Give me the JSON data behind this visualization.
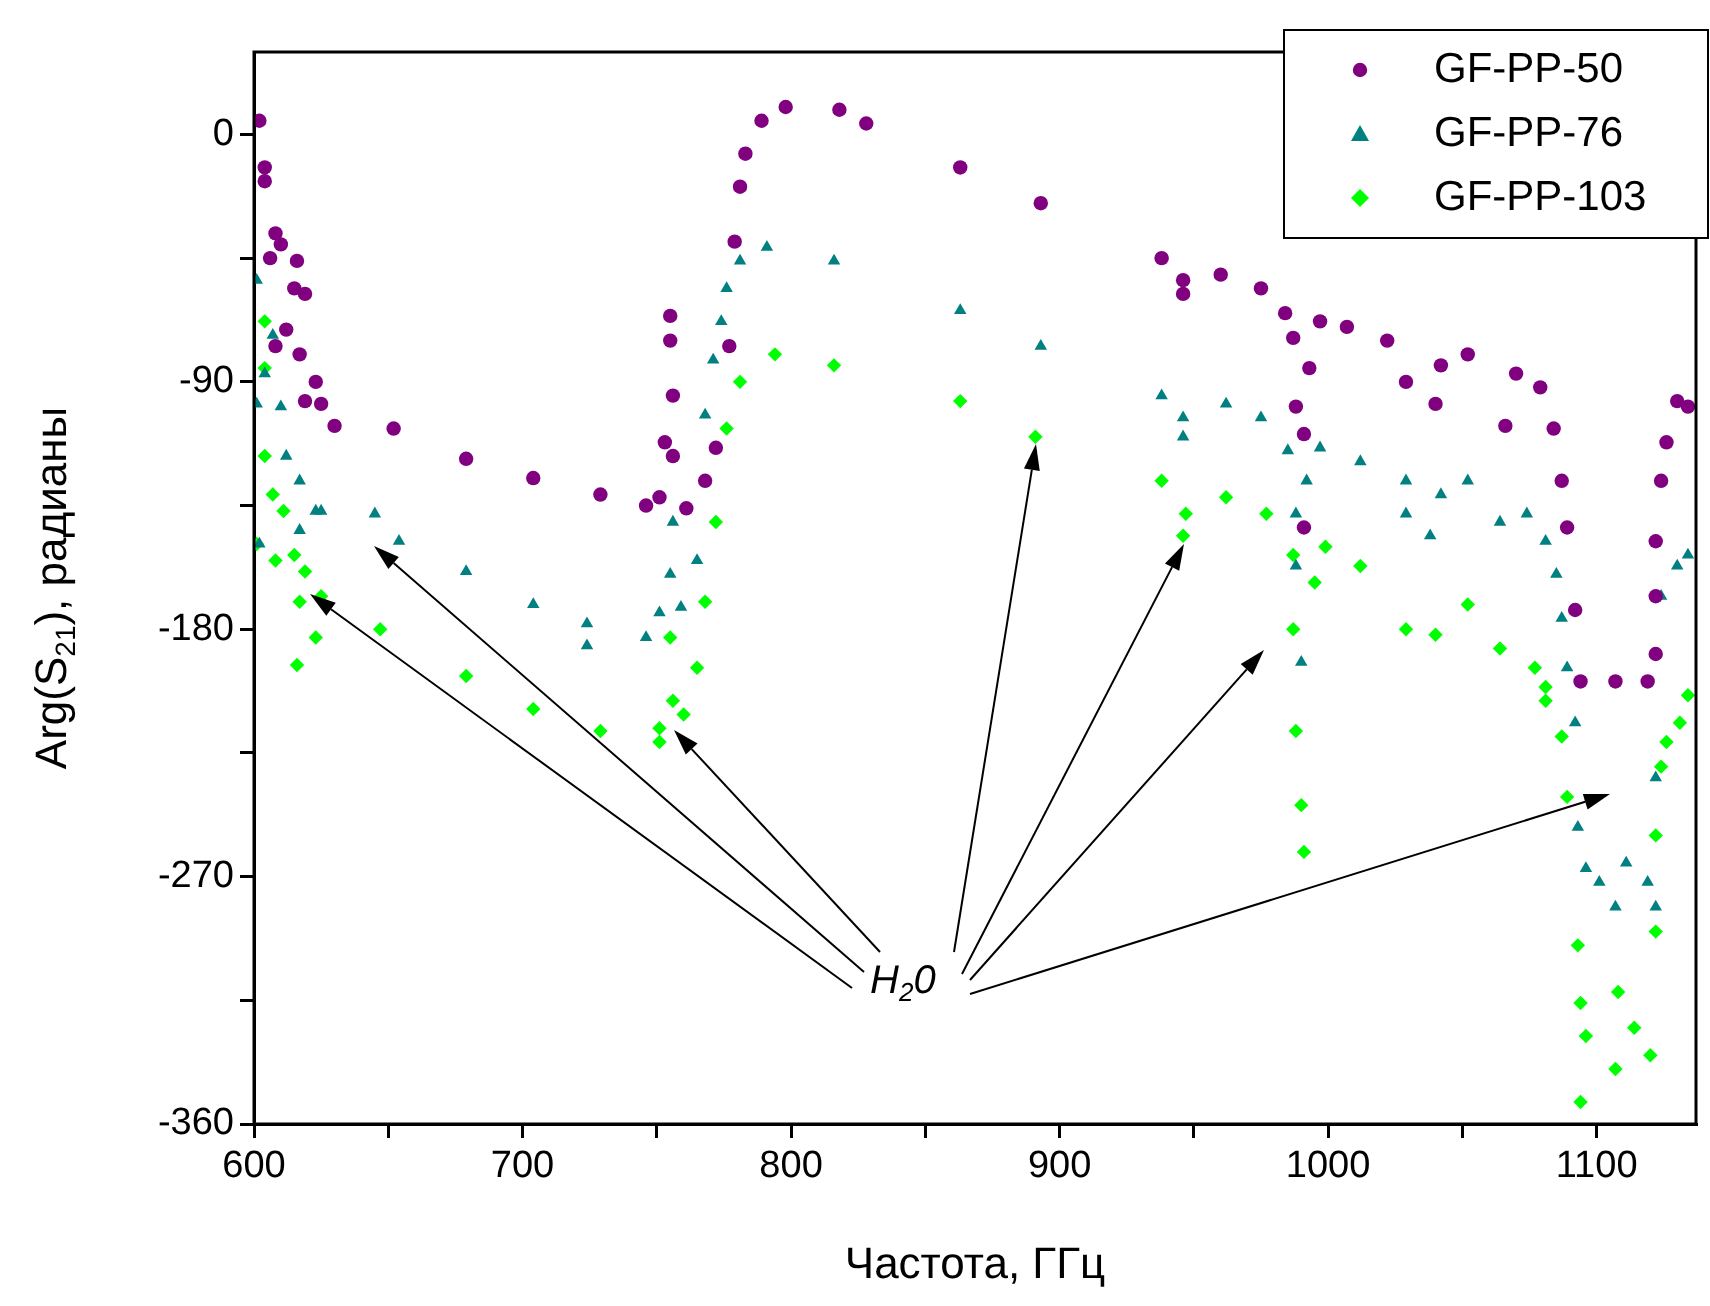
{
  "chart_data": {
    "type": "scatter",
    "xlabel": "Частота, ГГц",
    "ylabel": "Arg(S$_{21}$), радианы",
    "xlim": [
      600,
      1137
    ],
    "ylim": [
      -360,
      30
    ],
    "xticks": [
      600,
      {
        "value": 650,
        "label": null
      },
      700,
      {
        "value": 750,
        "label": null
      },
      800,
      {
        "value": 850,
        "label": null
      },
      900,
      {
        "value": 950,
        "label": null
      },
      1000,
      {
        "value": 1050,
        "label": null
      },
      1100
    ],
    "yticks": [
      -360,
      {
        "value": -315,
        "label": null
      },
      -270,
      {
        "value": -225,
        "label": null
      },
      -180,
      {
        "value": -135,
        "label": null
      },
      -90,
      {
        "value": -45,
        "label": null
      },
      0
    ],
    "grid": false,
    "legend": "top right",
    "annotations": [
      "H$_{2}$0"
    ],
    "series": [
      {
        "name": "GF-PP-50",
        "color": "#800080",
        "marker": "circle",
        "x": [
          602,
          604,
          604,
          606,
          608,
          610,
          616,
          615,
          619,
          608,
          612,
          617,
          623,
          619,
          625,
          630,
          652,
          679,
          704,
          729,
          746,
          751,
          755,
          755,
          756,
          753,
          756,
          761,
          768,
          772,
          777,
          779,
          781,
          783,
          789,
          798,
          818,
          828,
          863,
          893,
          938,
          946,
          946,
          960,
          975,
          984,
          987,
          988,
          991,
          991,
          993,
          997,
          1007,
          1022,
          1029,
          1040,
          1042,
          1052,
          1066,
          1070,
          1079,
          1084,
          1087,
          1089,
          1092,
          1094,
          1107,
          1119,
          1122,
          1122,
          1122,
          1124,
          1126,
          1130,
          1134
        ],
        "values": [
          5,
          -12,
          -17,
          -45,
          -36,
          -40,
          -46,
          -56,
          -58,
          -77,
          -71,
          -80,
          -90,
          -97,
          -98,
          -106,
          -107,
          -118,
          -125,
          -131,
          -135,
          -132,
          -66,
          -75,
          -95,
          -112,
          -117,
          -136,
          -126,
          -114,
          -77,
          -39,
          -19,
          -7,
          5,
          10,
          9,
          4,
          -12,
          -25,
          -45,
          -53,
          -58,
          -51,
          -56,
          -65,
          -74,
          -99,
          -109,
          -143,
          -85,
          -68,
          -70,
          -75,
          -90,
          -98,
          -84,
          -80,
          -106,
          -87,
          -92,
          -107,
          -126,
          -143,
          -173,
          -199,
          -199,
          -199,
          -189,
          -168,
          -148,
          -126,
          -112,
          -97,
          -99
        ]
      },
      {
        "name": "GF-PP-76",
        "color": "#008080",
        "marker": "triangle",
        "x": [
          601,
          604,
          601,
          607,
          610,
          612,
          602,
          617,
          617,
          623,
          625,
          645,
          654,
          679,
          704,
          724,
          724,
          746,
          751,
          756,
          755,
          759,
          765,
          768,
          771,
          774,
          776,
          781,
          791,
          816,
          863,
          893,
          938,
          946,
          946,
          962,
          975,
          985,
          988,
          988,
          990,
          992,
          997,
          1012,
          1029,
          1029,
          1038,
          1042,
          1052,
          1064,
          1074,
          1081,
          1085,
          1087,
          1089,
          1092,
          1093,
          1096,
          1101,
          1111,
          1107,
          1119,
          1122,
          1122,
          1124,
          1130,
          1134
        ],
        "values": [
          -53,
          -87,
          -98,
          -73,
          -99,
          -117,
          -149,
          -126,
          -144,
          -137,
          -137,
          -138,
          -148,
          -159,
          -171,
          -178,
          -186,
          -183,
          -174,
          -141,
          -160,
          -172,
          -155,
          -102,
          -82,
          -68,
          -56,
          -46,
          -41,
          -46,
          -64,
          -77,
          -95,
          -103,
          -110,
          -98,
          -103,
          -115,
          -138,
          -157,
          -192,
          -126,
          -114,
          -119,
          -126,
          -138,
          -146,
          -131,
          -126,
          -141,
          -138,
          -148,
          -160,
          -176,
          -194,
          -214,
          -252,
          -267,
          -272,
          -265,
          -281,
          -272,
          -281,
          -234,
          -168,
          -157,
          -153
        ]
      },
      {
        "name": "GF-PP-103",
        "color": "#00ff00",
        "marker": "diamond",
        "x": [
          604,
          604,
          604,
          601,
          607,
          608,
          611,
          615,
          616,
          617,
          623,
          619,
          625,
          647,
          679,
          704,
          729,
          751,
          751,
          755,
          756,
          760,
          765,
          768,
          772,
          776,
          781,
          794,
          816,
          863,
          891,
          938,
          947,
          946,
          962,
          977,
          987,
          987,
          988,
          990,
          991,
          995,
          999,
          1012,
          1029,
          1040,
          1052,
          1064,
          1077,
          1081,
          1081,
          1087,
          1089,
          1093,
          1094,
          1096,
          1094,
          1107,
          1108,
          1114,
          1120,
          1122,
          1122,
          1124,
          1126,
          1131,
          1134
        ],
        "values": [
          -68,
          -85,
          -117,
          -149,
          -131,
          -155,
          -137,
          -153,
          -193,
          -170,
          -183,
          -159,
          -168,
          -180,
          -197,
          -209,
          -217,
          -221,
          -216,
          -183,
          -206,
          -211,
          -194,
          -170,
          -141,
          -107,
          -90,
          -80,
          -84,
          -97,
          -110,
          -126,
          -138,
          -146,
          -132,
          -138,
          -153,
          -180,
          -217,
          -244,
          -261,
          -163,
          -150,
          -157,
          -180,
          -182,
          -171,
          -187,
          -194,
          -206,
          -201,
          -219,
          -241,
          -295,
          -316,
          -328,
          -352,
          -340,
          -312,
          -325,
          -335,
          -290,
          -255,
          -230,
          -221,
          -214,
          -204
        ]
      }
    ]
  }
}
